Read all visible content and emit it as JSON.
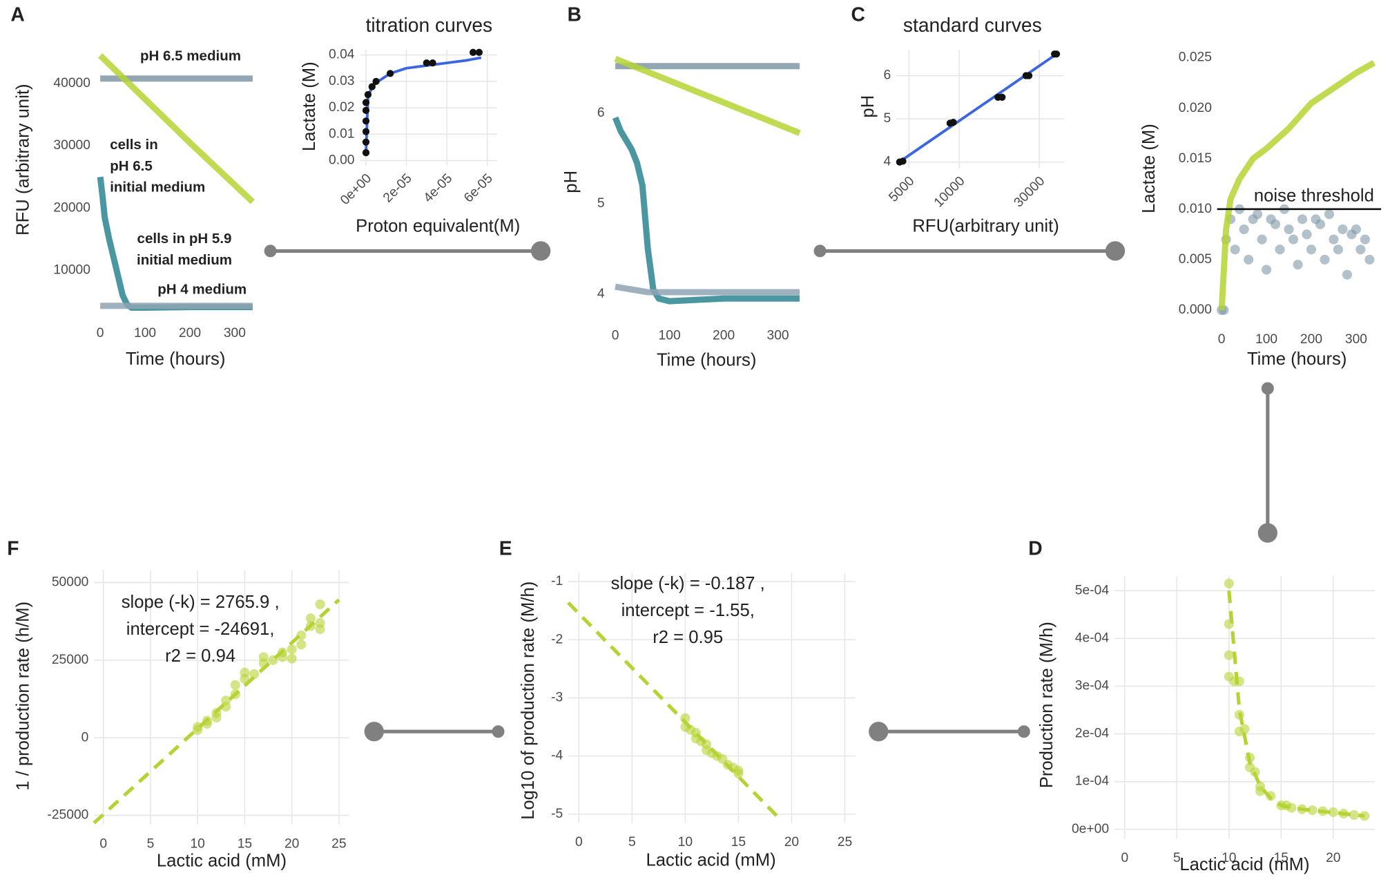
{
  "chart_data": [
    {
      "type": "line",
      "panel": "A",
      "x_label": "Time (hours)",
      "y_label": "RFU (arbitrary unit)",
      "xlim": [
        -10,
        340
      ],
      "ylim": [
        3000,
        45000
      ],
      "xticks": [
        0,
        100,
        200,
        300
      ],
      "yticks": [
        10000,
        20000,
        30000,
        40000
      ],
      "grid": false,
      "series": [
        {
          "color": "#7f97a6",
          "style": "line",
          "x": [
            0,
            340
          ],
          "values": [
            40800,
            40800
          ]
        },
        {
          "color": "#b5d334",
          "style": "line",
          "x": [
            0,
            100,
            200,
            340
          ],
          "values": [
            44500,
            37500,
            30500,
            21000
          ]
        },
        {
          "color": "#2a8592",
          "style": "line",
          "x": [
            0,
            5,
            10,
            20,
            30,
            40,
            50,
            60,
            70,
            100,
            200,
            340
          ],
          "values": [
            25000,
            22000,
            18500,
            15000,
            12000,
            9000,
            6000,
            4500,
            4000,
            4000,
            4100,
            4100
          ]
        },
        {
          "color": "#8ea3b3",
          "style": "line",
          "x": [
            0,
            340
          ],
          "values": [
            4300,
            4300
          ]
        }
      ],
      "labels": [
        {
          "lines": [
            "pH 6.5 medium"
          ],
          "color": "#7f97a6"
        },
        {
          "lines": [
            "cells in",
            "pH 6.5",
            "initial medium"
          ],
          "color": "#b5d334"
        },
        {
          "lines": [
            "cells in pH 5.9",
            "initial medium"
          ],
          "color": "#2a8592"
        },
        {
          "lines": [
            "pH 4 medium"
          ],
          "color": "#8ea3b3"
        }
      ]
    },
    {
      "type": "scatter",
      "title": "titration curves",
      "x_label": "Proton equivalent(M)",
      "y_label": "Lactate (M)",
      "xlim": [
        -3e-06,
        6.5e-05
      ],
      "ylim": [
        -0.002,
        0.042
      ],
      "xticks": [
        {
          "value": 0,
          "label": "0e+00"
        },
        {
          "value": 2e-05,
          "label": "2e-05"
        },
        {
          "value": 4e-05,
          "label": "4e-05"
        },
        {
          "value": 6e-05,
          "label": "6e-05"
        }
      ],
      "yticks": [
        {
          "value": 0,
          "label": "0.00"
        },
        {
          "value": 0.01,
          "label": "0.01"
        },
        {
          "value": 0.02,
          "label": "0.02"
        },
        {
          "value": 0.03,
          "label": "0.03"
        },
        {
          "value": 0.04,
          "label": "0.04"
        }
      ],
      "grid": true,
      "series": [
        {
          "color": "#3b66e0",
          "style": "line",
          "x": [
            0,
            1e-06,
            3e-06,
            6e-06,
            1.2e-05,
            2e-05,
            3e-05,
            4e-05,
            5e-05,
            5.7e-05
          ],
          "values": [
            0.003,
            0.024,
            0.028,
            0.03,
            0.033,
            0.035,
            0.036,
            0.037,
            0.038,
            0.039
          ]
        },
        {
          "color": "#111111",
          "style": "points",
          "x": [
            0,
            0,
            0,
            0,
            0,
            0,
            1e-06,
            3e-06,
            5e-06,
            1.2e-05,
            3e-05,
            3.3e-05,
            5.3e-05,
            5.6e-05
          ],
          "values": [
            0.003,
            0.007,
            0.011,
            0.015,
            0.019,
            0.022,
            0.025,
            0.028,
            0.03,
            0.033,
            0.037,
            0.037,
            0.041,
            0.041
          ]
        }
      ]
    },
    {
      "type": "line",
      "panel": "B",
      "x_label": "Time (hours)",
      "y_label": "pH",
      "xlim": [
        -10,
        340
      ],
      "ylim": [
        3.75,
        6.75
      ],
      "xticks": [
        0,
        100,
        200,
        300
      ],
      "yticks": [
        4,
        5,
        6
      ],
      "grid": false,
      "series": [
        {
          "color": "#7f97a6",
          "style": "line",
          "x": [
            0,
            340
          ],
          "values": [
            6.52,
            6.52
          ]
        },
        {
          "color": "#b5d334",
          "style": "line",
          "x": [
            0,
            340
          ],
          "values": [
            6.6,
            5.78
          ]
        },
        {
          "color": "#2a8592",
          "style": "line",
          "x": [
            0,
            10,
            20,
            30,
            40,
            50,
            60,
            70,
            80,
            100,
            200,
            340
          ],
          "values": [
            5.95,
            5.8,
            5.7,
            5.6,
            5.45,
            5.2,
            4.5,
            4.05,
            3.95,
            3.92,
            3.95,
            3.95
          ]
        },
        {
          "color": "#8ea3b3",
          "style": "line",
          "x": [
            0,
            60,
            340
          ],
          "values": [
            4.08,
            4.02,
            4.02
          ]
        }
      ]
    },
    {
      "type": "scatter",
      "panel": "C",
      "title": "standard curves",
      "x_label": "RFU(arbitrary unit)",
      "y_label": "pH",
      "x_log": true,
      "xlim": [
        4200,
        42000
      ],
      "ylim": [
        3.85,
        6.6
      ],
      "xticks": [
        5000,
        10000,
        30000
      ],
      "yticks": [
        4,
        5,
        6
      ],
      "grid": true,
      "series": [
        {
          "color": "#3b66e0",
          "style": "line",
          "x": [
            4300,
            38000
          ],
          "values": [
            3.98,
            6.5
          ]
        },
        {
          "color": "#111111",
          "style": "points",
          "x": [
            4400,
            4600,
            8800,
            9200,
            17000,
            18000,
            25000,
            26000,
            37000,
            38000
          ],
          "values": [
            4,
            4.02,
            4.9,
            4.92,
            5.5,
            5.5,
            6,
            6,
            6.5,
            6.5
          ]
        }
      ]
    },
    {
      "type": "line",
      "x_label": "Time (hours)",
      "y_label": "Lactate (M)",
      "xlim": [
        -10,
        340
      ],
      "ylim": [
        -0.001,
        0.0265
      ],
      "xticks": [
        0,
        100,
        200,
        300
      ],
      "yticks": [
        {
          "value": 0,
          "label": "0.000"
        },
        {
          "value": 0.005,
          "label": "0.005"
        },
        {
          "value": 0.01,
          "label": "0.010"
        },
        {
          "value": 0.015,
          "label": "0.015"
        },
        {
          "value": 0.02,
          "label": "0.020"
        },
        {
          "value": 0.025,
          "label": "0.025"
        }
      ],
      "grid": false,
      "series": [
        {
          "color": "#7f97a6",
          "style": "points",
          "x": [
            0,
            5,
            10,
            20,
            30,
            40,
            50,
            60,
            70,
            80,
            90,
            100,
            110,
            120,
            130,
            140,
            150,
            160,
            170,
            180,
            190,
            200,
            210,
            220,
            230,
            240,
            250,
            260,
            270,
            280,
            290,
            300,
            310,
            320,
            330
          ],
          "values": [
            0,
            0,
            0.007,
            0.009,
            0.006,
            0.01,
            0.008,
            0.005,
            0.009,
            0.0095,
            0.007,
            0.004,
            0.009,
            0.0085,
            0.006,
            0.01,
            0.008,
            0.007,
            0.0045,
            0.009,
            0.0075,
            0.006,
            0.009,
            0.0085,
            0.005,
            0.0095,
            0.007,
            0.006,
            0.008,
            0.0035,
            0.0075,
            0.008,
            0.006,
            0.007,
            0.005
          ]
        },
        {
          "color": "#b5d334",
          "style": "line",
          "x": [
            0,
            5,
            10,
            20,
            40,
            70,
            100,
            150,
            200,
            250,
            300,
            340
          ],
          "values": [
            0,
            0.004,
            0.008,
            0.011,
            0.013,
            0.015,
            0.016,
            0.018,
            0.0205,
            0.022,
            0.0235,
            0.0245
          ]
        }
      ],
      "hlines": [
        {
          "value": 0.01,
          "label": "noise threshold"
        }
      ]
    },
    {
      "type": "scatter",
      "panel": "D",
      "x_label": "Lactic acid (mM)",
      "y_label": "Production rate (M/h)",
      "xlim": [
        -1,
        24
      ],
      "ylim": [
        -2e-05,
        0.00053
      ],
      "xticks": [
        0,
        5,
        10,
        15,
        20
      ],
      "yticks": [
        {
          "value": 0,
          "label": "0e+00"
        },
        {
          "value": 0.0001,
          "label": "1e-04"
        },
        {
          "value": 0.0002,
          "label": "2e-04"
        },
        {
          "value": 0.0003,
          "label": "3e-04"
        },
        {
          "value": 0.0004,
          "label": "4e-04"
        },
        {
          "value": 0.0005,
          "label": "5e-04"
        }
      ],
      "grid": true,
      "series": [
        {
          "color": "#b5d334",
          "style": "points",
          "x": [
            10,
            10,
            10,
            10,
            10.5,
            11,
            11,
            11,
            11.5,
            12,
            12,
            12.5,
            13,
            13,
            14,
            15,
            15.5,
            16,
            17,
            18,
            19,
            20,
            21,
            22,
            23
          ],
          "values": [
            0.000515,
            0.00043,
            0.000365,
            0.00032,
            0.00031,
            0.00031,
            0.00024,
            0.000205,
            0.00021,
            0.00015,
            0.00013,
            0.00012,
            9e-05,
            8e-05,
            7e-05,
            5e-05,
            5e-05,
            4.5e-05,
            4.2e-05,
            4e-05,
            3.8e-05,
            3.6e-05,
            3.3e-05,
            3e-05,
            2.8e-05
          ]
        },
        {
          "color": "#b5d334",
          "style": "dashed",
          "x": [
            10,
            11,
            12,
            13,
            14,
            15,
            17,
            20,
            23
          ],
          "values": [
            0.0005,
            0.00025,
            0.00014,
            9e-05,
            6.5e-05,
            5e-05,
            4.2e-05,
            3.5e-05,
            2.8e-05
          ]
        }
      ]
    },
    {
      "type": "scatter",
      "panel": "E",
      "x_label": "Lactic acid (mM)",
      "y_label": "Log10 of production rate (M/h)",
      "xlim": [
        -1,
        26
      ],
      "ylim": [
        -5.15,
        -0.85
      ],
      "xticks": [
        0,
        5,
        10,
        15,
        20,
        25
      ],
      "yticks": [
        -5,
        -4,
        -3,
        -2,
        -1
      ],
      "grid": true,
      "series": [
        {
          "color": "#b5d334",
          "style": "points",
          "x": [
            10,
            10,
            10.5,
            11,
            11,
            11.5,
            12,
            12,
            12.5,
            13,
            13.5,
            14,
            14.5,
            15,
            15
          ],
          "values": [
            -3.35,
            -3.5,
            -3.55,
            -3.6,
            -3.7,
            -3.75,
            -3.8,
            -3.9,
            -3.95,
            -4.0,
            -4.05,
            -4.15,
            -4.2,
            -4.25,
            -4.3
          ]
        },
        {
          "color": "#b5d334",
          "style": "dashed",
          "x": [
            -1,
            19
          ],
          "values": [
            -1.363,
            -5.103
          ]
        }
      ],
      "annotation": [
        "slope (-k) = -0.187 ,",
        "intercept = -1.55,",
        "r2 = 0.95"
      ]
    },
    {
      "type": "scatter",
      "panel": "F",
      "x_label": "Lactic acid (mM)",
      "y_label": "1 / production rate (h/M)",
      "xlim": [
        -1,
        26
      ],
      "ylim": [
        -28000,
        54000
      ],
      "xticks": [
        0,
        5,
        10,
        15,
        20,
        25
      ],
      "yticks": [
        -25000,
        0,
        25000,
        50000
      ],
      "grid": true,
      "series": [
        {
          "color": "#b5d334",
          "style": "points",
          "x": [
            10,
            10,
            11,
            11,
            12,
            12,
            13,
            13,
            14,
            14,
            15,
            15,
            16,
            17,
            17,
            18,
            19,
            19,
            20,
            20,
            21,
            21,
            22,
            22,
            23,
            23,
            23
          ],
          "values": [
            2500,
            3500,
            4500,
            5500,
            6500,
            8000,
            10000,
            12000,
            14000,
            17000,
            19000,
            21000,
            20500,
            24000,
            26000,
            25000,
            26000,
            27500,
            25500,
            28500,
            30000,
            33000,
            36000,
            38500,
            35000,
            43000,
            37000
          ]
        },
        {
          "color": "#b5d334",
          "style": "dashed",
          "x": [
            -1,
            25
          ],
          "values": [
            -27456.9,
            44456.5
          ]
        }
      ],
      "annotation": [
        "slope (-k) = 2765.9 ,",
        "intercept = -24691,",
        "r2 = 0.94"
      ]
    }
  ]
}
